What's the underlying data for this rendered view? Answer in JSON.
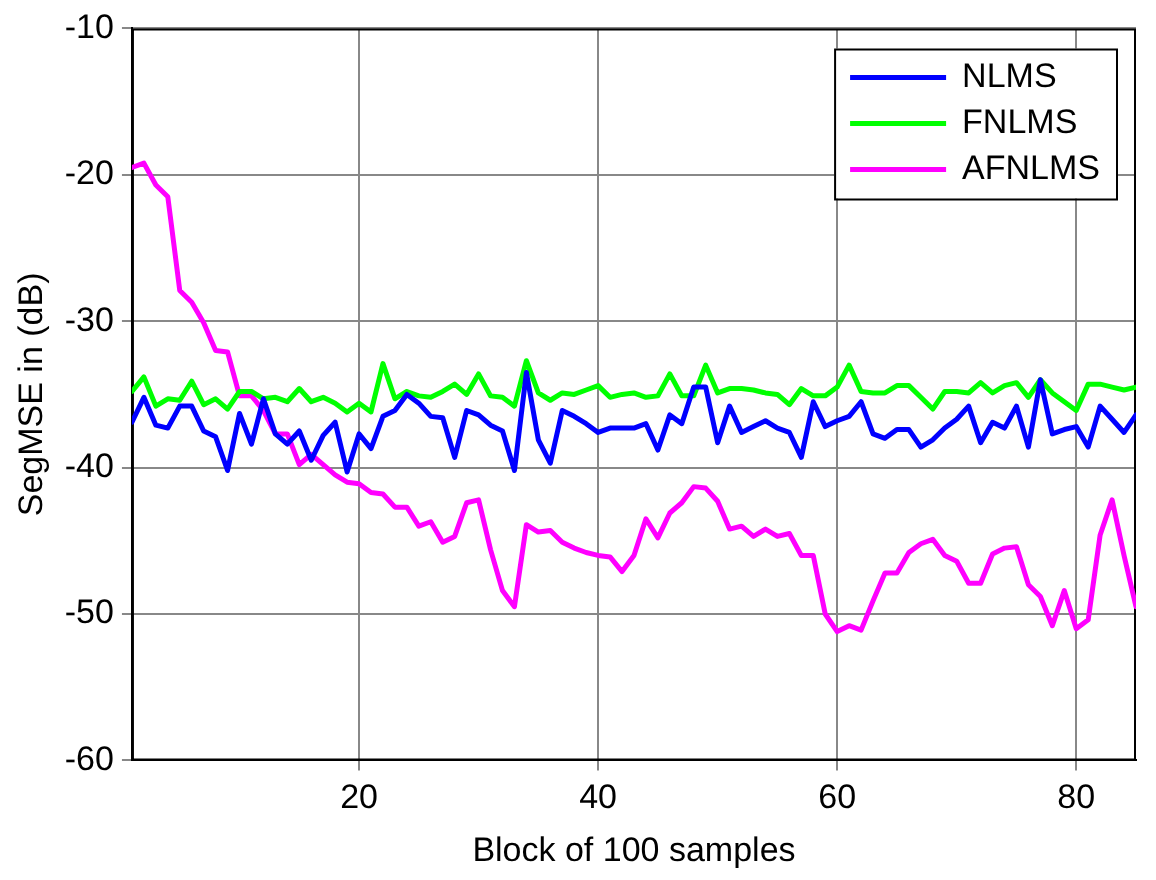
{
  "chart_data": {
    "type": "line",
    "xlabel": "Block of 100 samples",
    "ylabel": "SegMSE in (dB)",
    "x": [
      1,
      2,
      3,
      4,
      5,
      6,
      7,
      8,
      9,
      10,
      11,
      12,
      13,
      14,
      15,
      16,
      17,
      18,
      19,
      20,
      21,
      22,
      23,
      24,
      25,
      26,
      27,
      28,
      29,
      30,
      31,
      32,
      33,
      34,
      35,
      36,
      37,
      38,
      39,
      40,
      41,
      42,
      43,
      44,
      45,
      46,
      47,
      48,
      49,
      50,
      51,
      52,
      53,
      54,
      55,
      56,
      57,
      58,
      59,
      60,
      61,
      62,
      63,
      64,
      65,
      66,
      67,
      68,
      69,
      70,
      71,
      72,
      73,
      74,
      75,
      76,
      77,
      78,
      79,
      80,
      81,
      82,
      83,
      84,
      85
    ],
    "series": [
      {
        "name": "NLMS",
        "color": "#0000ff",
        "values": [
          -36.9,
          -35.2,
          -37.1,
          -37.3,
          -35.8,
          -35.8,
          -37.5,
          -37.9,
          -40.2,
          -36.3,
          -38.4,
          -35.3,
          -37.7,
          -38.4,
          -37.5,
          -39.5,
          -37.8,
          -36.9,
          -40.3,
          -37.7,
          -38.7,
          -36.5,
          -36.1,
          -35,
          -35.6,
          -36.5,
          -36.6,
          -39.3,
          -36.1,
          -36.4,
          -37.1,
          -37.5,
          -40.2,
          -33.5,
          -38.1,
          -39.7,
          -36.1,
          -36.5,
          -37,
          -37.6,
          -37.3,
          -37.3,
          -37.3,
          -37,
          -38.8,
          -36.4,
          -37,
          -34.5,
          -34.5,
          -38.3,
          -35.8,
          -37.6,
          -37.2,
          -36.8,
          -37.3,
          -37.6,
          -39.3,
          -35.5,
          -37.2,
          -36.8,
          -36.5,
          -35.5,
          -37.7,
          -38,
          -37.4,
          -37.4,
          -38.6,
          -38.1,
          -37.3,
          -36.7,
          -35.8,
          -38.3,
          -36.9,
          -37.3,
          -35.8,
          -38.6,
          -34,
          -37.7,
          -37.4,
          -37.2,
          -38.6,
          -35.8,
          -36.7,
          -37.6,
          -36.4
        ]
      },
      {
        "name": "FNLMS",
        "color": "#00ff00",
        "values": [
          -34.8,
          -33.8,
          -35.8,
          -35.3,
          -35.4,
          -34.1,
          -35.7,
          -35.3,
          -36,
          -34.8,
          -34.8,
          -35.3,
          -35.2,
          -35.5,
          -34.6,
          -35.5,
          -35.2,
          -35.6,
          -36.2,
          -35.6,
          -36.2,
          -32.9,
          -35.3,
          -34.8,
          -35.1,
          -35.2,
          -34.8,
          -34.3,
          -35,
          -33.6,
          -35.1,
          -35.2,
          -35.8,
          -32.7,
          -34.9,
          -35.4,
          -34.9,
          -35,
          -34.7,
          -34.4,
          -35.2,
          -35,
          -34.9,
          -35.2,
          -35.1,
          -33.6,
          -35.1,
          -35.1,
          -33,
          -34.9,
          -34.6,
          -34.6,
          -34.7,
          -34.9,
          -35,
          -35.7,
          -34.6,
          -35.1,
          -35.1,
          -34.5,
          -33,
          -34.8,
          -34.9,
          -34.9,
          -34.4,
          -34.4,
          -35.2,
          -36,
          -34.8,
          -34.8,
          -34.9,
          -34.2,
          -34.9,
          -34.4,
          -34.2,
          -35.2,
          -34,
          -34.9,
          -35.5,
          -36.1,
          -34.3,
          -34.3,
          -34.5,
          -34.7,
          -34.5
        ]
      },
      {
        "name": "AFNLMS",
        "color": "#ff00ff",
        "values": [
          -19.5,
          -19.2,
          -20.7,
          -21.5,
          -27.9,
          -28.7,
          -30.1,
          -32,
          -32.1,
          -35.1,
          -35.1,
          -36.1,
          -37.7,
          -37.7,
          -39.8,
          -39.1,
          -39.8,
          -40.5,
          -41,
          -41.1,
          -41.7,
          -41.8,
          -42.7,
          -42.7,
          -44,
          -43.7,
          -45.1,
          -44.7,
          -42.4,
          -42.2,
          -45.6,
          -48.4,
          -49.5,
          -43.9,
          -44.4,
          -44.3,
          -45.1,
          -45.5,
          -45.8,
          -46,
          -46.1,
          -47.1,
          -46,
          -43.5,
          -44.8,
          -43.1,
          -42.4,
          -41.3,
          -41.4,
          -42.3,
          -44.2,
          -44,
          -44.7,
          -44.2,
          -44.7,
          -44.5,
          -46,
          -46,
          -50,
          -51.2,
          -50.8,
          -51.1,
          -49.1,
          -47.2,
          -47.2,
          -45.8,
          -45.2,
          -44.9,
          -46,
          -46.4,
          -47.9,
          -47.9,
          -45.9,
          -45.5,
          -45.4,
          -48,
          -48.8,
          -50.8,
          -48.4,
          -51,
          -50.4,
          -44.6,
          -42.2,
          -46,
          -49.5
        ]
      }
    ],
    "xlim": [
      1,
      85
    ],
    "xticks": [
      20,
      40,
      60,
      80
    ],
    "ylim": [
      -60,
      -10
    ],
    "yticks": [
      -60,
      -50,
      -40,
      -30,
      -20,
      -10
    ],
    "grid": true,
    "legend": "top right",
    "marker": "none",
    "line_style": "solid"
  }
}
